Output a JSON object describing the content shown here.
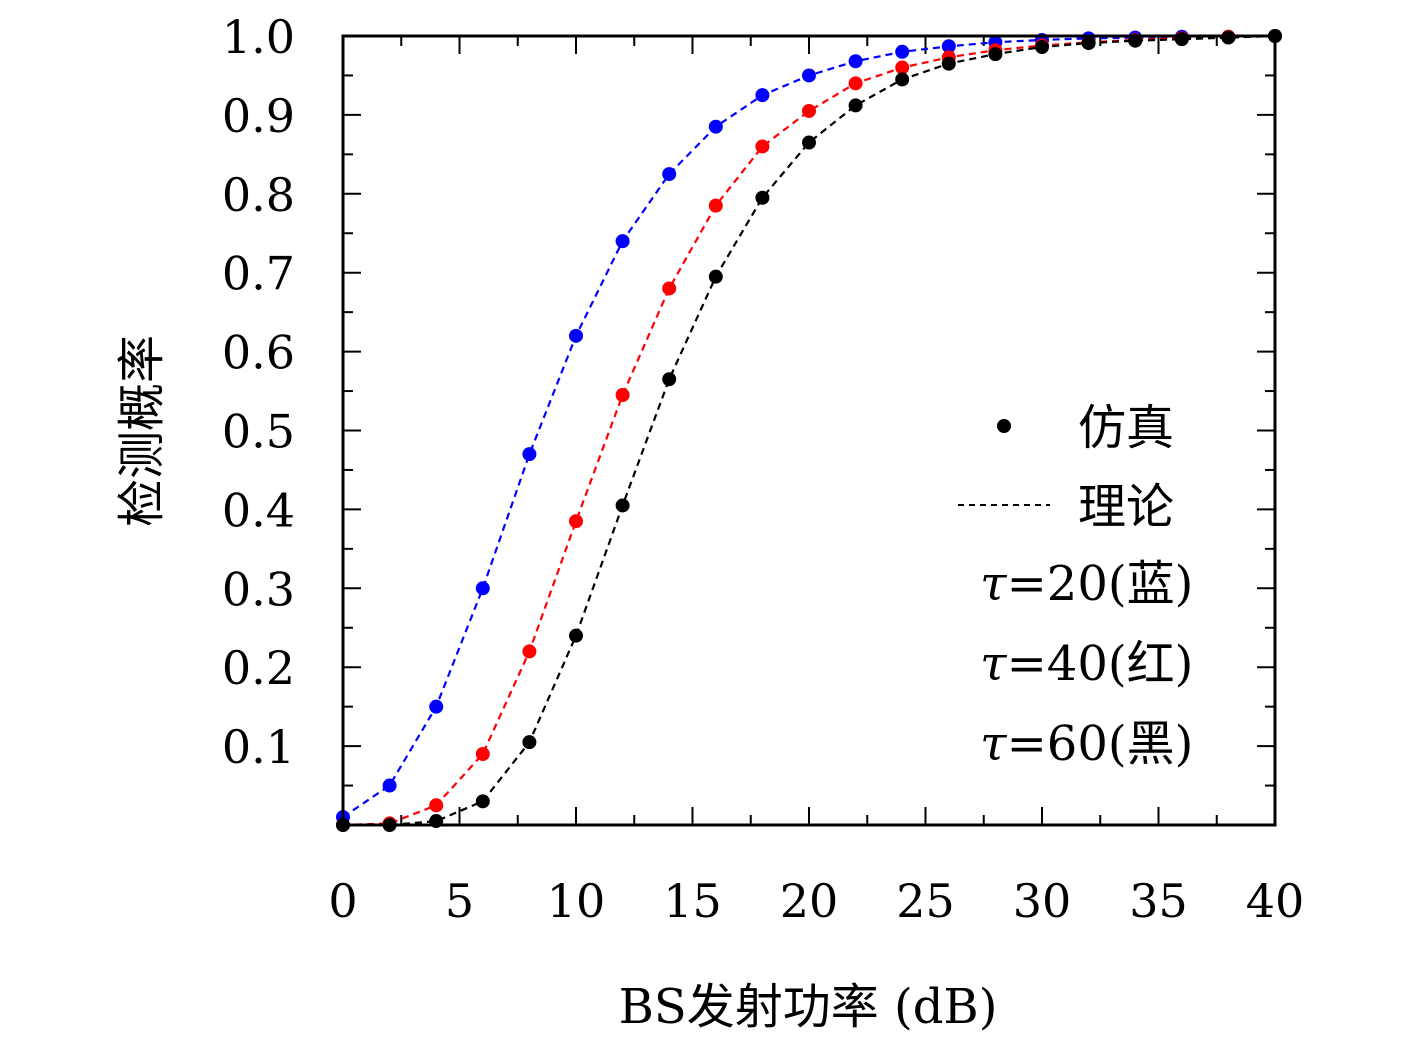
{
  "chart_data": {
    "type": "line",
    "title": "",
    "xlabel": "BS发射功率 (dB)",
    "ylabel": "检测概率",
    "xlim": [
      0,
      40
    ],
    "ylim": [
      0,
      1.0
    ],
    "x_ticks": [
      "0",
      "5",
      "10",
      "15",
      "20",
      "25",
      "30",
      "35",
      "40"
    ],
    "y_ticks": [
      "0.1",
      "0.2",
      "0.3",
      "0.4",
      "0.5",
      "0.6",
      "0.7",
      "0.8",
      "0.9",
      "1.0"
    ],
    "grid": false,
    "legend_position": "right",
    "legend": {
      "sim_label": "仿真",
      "theory_label": "理论",
      "tau_lines": [
        {
          "symbol": "τ",
          "text": "=20(蓝)"
        },
        {
          "symbol": "τ",
          "text": "=40(红)"
        },
        {
          "symbol": "τ",
          "text": "=60(黑)"
        }
      ]
    },
    "x": [
      0,
      2,
      4,
      6,
      8,
      10,
      12,
      14,
      16,
      18,
      20,
      22,
      24,
      26,
      28,
      30,
      32,
      34,
      36,
      38,
      40
    ],
    "series": [
      {
        "color": "#0000ff",
        "values": [
          0.01,
          0.05,
          0.15,
          0.3,
          0.47,
          0.62,
          0.74,
          0.825,
          0.885,
          0.925,
          0.95,
          0.968,
          0.98,
          0.987,
          0.992,
          0.995,
          0.997,
          0.998,
          0.999,
          0.999,
          1.0
        ]
      },
      {
        "color": "#ff0000",
        "values": [
          0.0,
          0.002,
          0.025,
          0.09,
          0.22,
          0.385,
          0.545,
          0.68,
          0.785,
          0.86,
          0.905,
          0.94,
          0.96,
          0.973,
          0.982,
          0.988,
          0.992,
          0.995,
          0.997,
          0.999,
          1.0
        ]
      },
      {
        "color": "#000000",
        "values": [
          0.0,
          0.0,
          0.005,
          0.03,
          0.105,
          0.24,
          0.405,
          0.565,
          0.695,
          0.795,
          0.865,
          0.912,
          0.945,
          0.965,
          0.977,
          0.986,
          0.991,
          0.994,
          0.996,
          0.998,
          1.0
        ]
      }
    ]
  }
}
